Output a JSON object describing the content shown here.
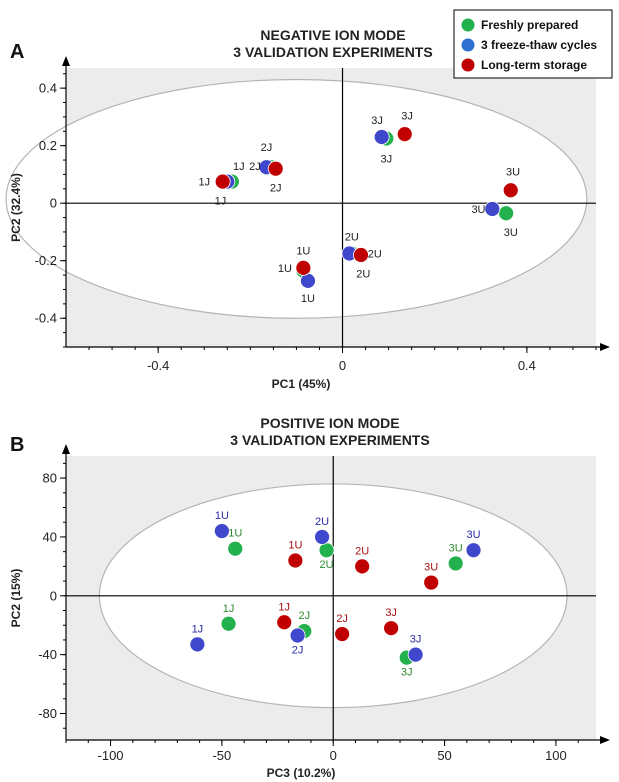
{
  "colors": {
    "freshly_prepared": "#22b14c",
    "freeze_thaw": "#3f48cc",
    "long_term": "#c00000",
    "label_green": "#2e8b2e",
    "label_blue": "#2a2aa8",
    "label_red": "#a51010"
  },
  "legend": {
    "items": [
      {
        "label": "Freshly prepared",
        "color": "#22b14c"
      },
      {
        "label": "3 freeze-thaw cycles",
        "color": "#2e6fd1"
      },
      {
        "label": "Long-term storage",
        "color": "#c00000"
      }
    ],
    "placement": "top-right"
  },
  "chart_data": [
    {
      "type": "scatter",
      "panel": "A",
      "title": [
        "NEGATIVE ION MODE",
        "3 VALIDATION EXPERIMENTS"
      ],
      "xlabel": "PC1 (45%)",
      "ylabel": "PC2 (32.4%)",
      "xlim": [
        -0.6,
        0.55
      ],
      "ylim": [
        -0.5,
        0.47
      ],
      "xticks": [
        -0.4,
        0,
        0.4
      ],
      "xtick_labels": [
        "-0.4",
        "0",
        "0.4"
      ],
      "yticks": [
        -0.4,
        -0.2,
        0,
        0.2,
        0.4
      ],
      "ytick_labels": [
        "-0.4",
        "-0.2",
        "0",
        "0.2",
        "0.4"
      ],
      "ellipse": {
        "cx": -0.1,
        "cy": 0.015,
        "rx": 0.63,
        "ry": 0.415
      },
      "series": [
        {
          "name": "Freshly prepared",
          "color_key": "freshly_prepared",
          "label_color_key": "label_green",
          "points": [
            {
              "x": -0.24,
              "y": 0.075,
              "label": "1J"
            },
            {
              "x": -0.155,
              "y": 0.125,
              "label": "2J"
            },
            {
              "x": 0.095,
              "y": 0.225,
              "label": "3J"
            },
            {
              "x": -0.085,
              "y": -0.235,
              "label": "1U"
            },
            {
              "x": 0.02,
              "y": -0.175,
              "label": "2U"
            },
            {
              "x": 0.355,
              "y": -0.035,
              "label": "3U"
            }
          ]
        },
        {
          "name": "3 freeze-thaw cycles",
          "color_key": "freeze_thaw",
          "label_color_key": "label_blue",
          "points": [
            {
              "x": -0.25,
              "y": 0.075,
              "label": ""
            },
            {
              "x": -0.165,
              "y": 0.125,
              "label": ""
            },
            {
              "x": 0.085,
              "y": 0.23,
              "label": ""
            },
            {
              "x": -0.075,
              "y": -0.27,
              "label": ""
            },
            {
              "x": 0.015,
              "y": -0.175,
              "label": ""
            },
            {
              "x": 0.325,
              "y": -0.02,
              "label": ""
            }
          ]
        },
        {
          "name": "Long-term storage",
          "color_key": "long_term",
          "label_color_key": "label_red",
          "points": [
            {
              "x": -0.26,
              "y": 0.075,
              "label": ""
            },
            {
              "x": -0.145,
              "y": 0.12,
              "label": ""
            },
            {
              "x": 0.135,
              "y": 0.24,
              "label": ""
            },
            {
              "x": -0.085,
              "y": -0.225,
              "label": ""
            },
            {
              "x": 0.04,
              "y": -0.18,
              "label": ""
            },
            {
              "x": 0.365,
              "y": 0.045,
              "label": ""
            }
          ]
        }
      ],
      "labels": [
        {
          "text": "1J",
          "x": -0.225,
          "y": 0.13,
          "color_key": "none"
        },
        {
          "text": "1J",
          "x": -0.3,
          "y": 0.075,
          "color_key": "none"
        },
        {
          "text": "1J",
          "x": -0.265,
          "y": 0.01,
          "color_key": "none"
        },
        {
          "text": "2J",
          "x": -0.165,
          "y": 0.195,
          "color_key": "none"
        },
        {
          "text": "2J",
          "x": -0.19,
          "y": 0.13,
          "color_key": "none"
        },
        {
          "text": "2J",
          "x": -0.145,
          "y": 0.055,
          "color_key": "none"
        },
        {
          "text": "3J",
          "x": 0.075,
          "y": 0.29,
          "color_key": "none"
        },
        {
          "text": "3J",
          "x": 0.14,
          "y": 0.305,
          "color_key": "none"
        },
        {
          "text": "3J",
          "x": 0.095,
          "y": 0.155,
          "color_key": "none"
        },
        {
          "text": "1U",
          "x": -0.085,
          "y": -0.165,
          "color_key": "none"
        },
        {
          "text": "1U",
          "x": -0.125,
          "y": -0.225,
          "color_key": "none"
        },
        {
          "text": "1U",
          "x": -0.075,
          "y": -0.33,
          "color_key": "none"
        },
        {
          "text": "2U",
          "x": 0.02,
          "y": -0.115,
          "color_key": "none"
        },
        {
          "text": "2U",
          "x": 0.07,
          "y": -0.175,
          "color_key": "none"
        },
        {
          "text": "2U",
          "x": 0.045,
          "y": -0.245,
          "color_key": "none"
        },
        {
          "text": "3U",
          "x": 0.37,
          "y": 0.11,
          "color_key": "none"
        },
        {
          "text": "3U",
          "x": 0.295,
          "y": -0.02,
          "color_key": "none"
        },
        {
          "text": "3U",
          "x": 0.365,
          "y": -0.1,
          "color_key": "none"
        }
      ]
    },
    {
      "type": "scatter",
      "panel": "B",
      "title": [
        "POSITIVE ION MODE",
        "3 VALIDATION EXPERIMENTS"
      ],
      "xlabel": "PC3 (10.2%)",
      "ylabel": "PC2 (15%)",
      "xlim": [
        -120,
        118
      ],
      "ylim": [
        -98,
        95
      ],
      "xticks": [
        -100,
        -50,
        0,
        50,
        100
      ],
      "xtick_labels": [
        "-100",
        "-50",
        "0",
        "50",
        "100"
      ],
      "yticks": [
        -80,
        -40,
        0,
        40,
        80
      ],
      "ytick_labels": [
        "-80",
        "-40",
        "0",
        "40",
        "80"
      ],
      "ellipse": {
        "cx": 0,
        "cy": 0,
        "rx": 105,
        "ry": 76
      },
      "series": [
        {
          "name": "Freshly prepared",
          "color_key": "freshly_prepared",
          "label_color_key": "label_green",
          "points": [
            {
              "x": -44,
              "y": 32,
              "label": "1U"
            },
            {
              "x": -47,
              "y": -19,
              "label": "1J"
            },
            {
              "x": -3,
              "y": 31,
              "label": "2U"
            },
            {
              "x": -13,
              "y": -24,
              "label": "2J"
            },
            {
              "x": 55,
              "y": 22,
              "label": "3U"
            },
            {
              "x": 33,
              "y": -42,
              "label": "3J"
            }
          ]
        },
        {
          "name": "3 freeze-thaw cycles",
          "color_key": "freeze_thaw",
          "label_color_key": "label_blue",
          "points": [
            {
              "x": -50,
              "y": 44,
              "label": "1U"
            },
            {
              "x": -61,
              "y": -33,
              "label": "1J"
            },
            {
              "x": -5,
              "y": 40,
              "label": "2U"
            },
            {
              "x": -16,
              "y": -27,
              "label": "2J"
            },
            {
              "x": 63,
              "y": 31,
              "label": "3U"
            },
            {
              "x": 37,
              "y": -40,
              "label": "3J"
            }
          ]
        },
        {
          "name": "Long-term storage",
          "color_key": "long_term",
          "label_color_key": "label_red",
          "points": [
            {
              "x": -17,
              "y": 24,
              "label": "1U"
            },
            {
              "x": -22,
              "y": -18,
              "label": "1J"
            },
            {
              "x": 13,
              "y": 20,
              "label": "2U"
            },
            {
              "x": 4,
              "y": -26,
              "label": "2J"
            },
            {
              "x": 44,
              "y": 9,
              "label": "3U"
            },
            {
              "x": 26,
              "y": -22,
              "label": "3J"
            }
          ]
        }
      ]
    }
  ],
  "panel_letters": [
    "A",
    "B"
  ]
}
